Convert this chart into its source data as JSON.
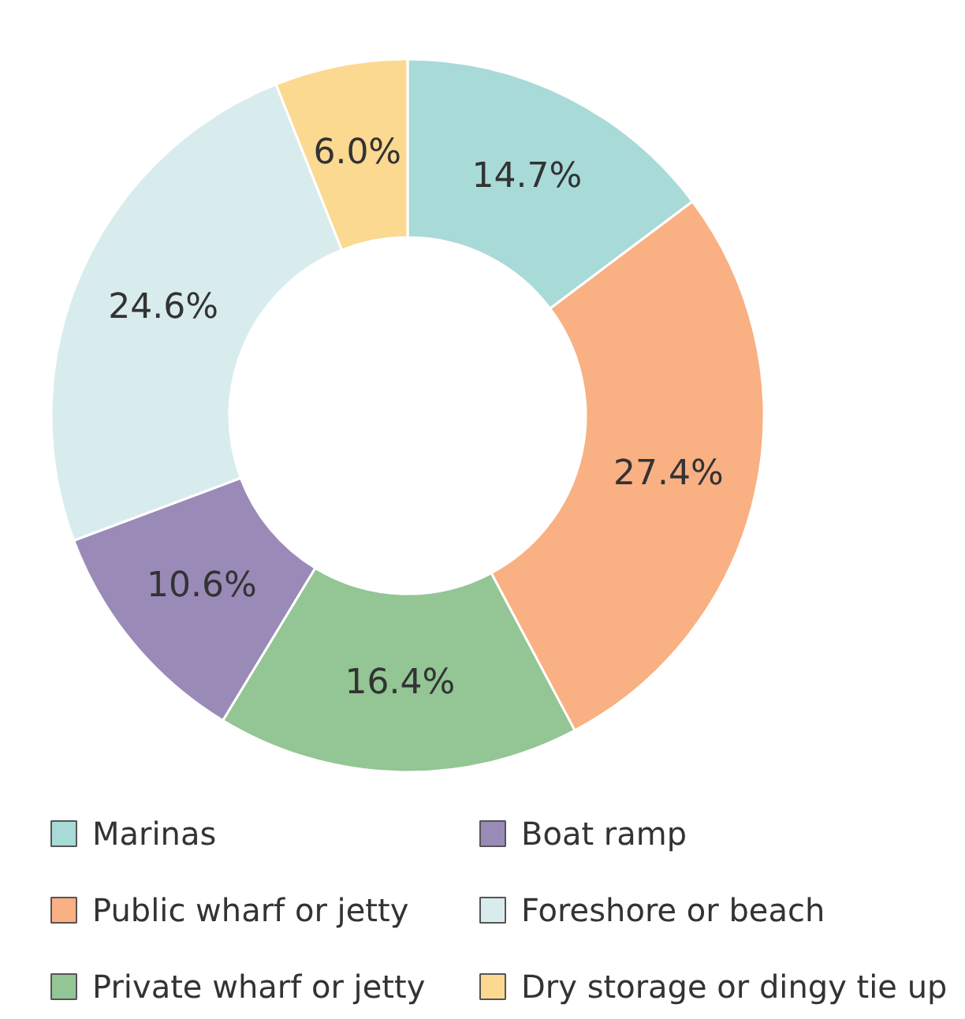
{
  "chart_data": {
    "type": "donut",
    "categories": [
      "Marinas",
      "Public wharf or jetty",
      "Private wharf or jetty",
      "Boat ramp",
      "Foreshore or beach",
      "Dry storage or dingy tie up"
    ],
    "values": [
      14.7,
      27.4,
      16.4,
      10.6,
      24.6,
      6.0
    ],
    "colors": [
      "#a8dad8",
      "#f9b083",
      "#93c595",
      "#9a8ab8",
      "#d9eced",
      "#fbd991"
    ],
    "value_labels": [
      "14.7%",
      "27.4%",
      "16.4%",
      "10.6%",
      "24.6%",
      "6.0%"
    ],
    "legend": "bottom"
  }
}
